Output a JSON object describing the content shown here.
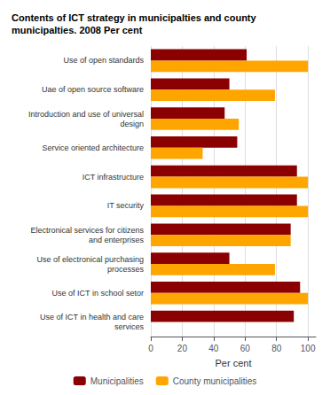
{
  "chart_data": {
    "type": "bar",
    "orientation": "horizontal",
    "title": "Contents of ICT strategy in municipalties and county\nmunicipalties. 2008 Per cent",
    "categories": [
      "Use of open standards",
      "Uae of open source software",
      "Introduction and use of universal\ndesign",
      "Service oriented architecture",
      "ICT infrastructure",
      "IT security",
      "Electronical services for citizens\nand enterprises",
      "Use of electronical purchasing\nprocesses",
      "Use of ICT in school setor",
      "Use of ICT in health and care\nservices"
    ],
    "series": [
      {
        "name": "Municipalities",
        "color": "#8B0000",
        "values": [
          61,
          50,
          47,
          55,
          93,
          93,
          89,
          50,
          95,
          91
        ]
      },
      {
        "name": "County municipalities",
        "color": "#FFA500",
        "values": [
          100,
          79,
          56,
          33,
          100,
          100,
          89,
          79,
          100,
          0
        ]
      }
    ],
    "xlabel": "Per cent",
    "xlim": [
      0,
      105
    ],
    "xticks": [
      0,
      20,
      40,
      60,
      80,
      100
    ],
    "grid": true,
    "legend": "bottom"
  }
}
